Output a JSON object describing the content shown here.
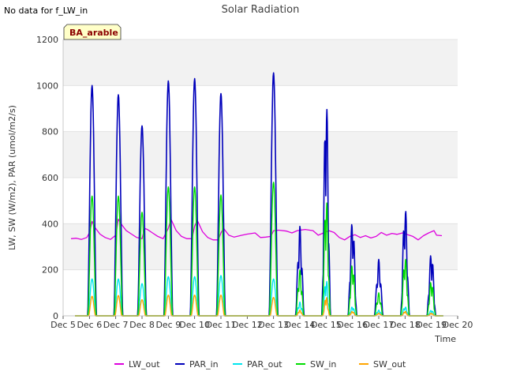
{
  "note": "No data for f_LW_in",
  "chart_data": {
    "type": "line",
    "title": "Solar Radiation",
    "xlabel": "Time",
    "ylabel": "LW, SW (W/m2), PAR (umol/m2/s)",
    "badge": "BA_arable",
    "xlim": [
      5,
      20
    ],
    "ylim": [
      0,
      1200
    ],
    "xticks": [
      5,
      6,
      7,
      8,
      9,
      10,
      11,
      12,
      13,
      14,
      15,
      16,
      17,
      18,
      19,
      20
    ],
    "xtick_labels": [
      "Dec 5",
      "Dec 6",
      "Dec 7",
      "Dec 8",
      "Dec 9",
      "Dec 10",
      "Dec 11",
      "Dec 12",
      "Dec 13",
      "Dec 14",
      "Dec 15",
      "Dec 16",
      "Dec 17",
      "Dec 18",
      "Dec 19",
      "Dec 20"
    ],
    "yticks": [
      0,
      200,
      400,
      600,
      800,
      1000,
      1200
    ],
    "grid": true,
    "legend_position": "bottom",
    "day_peaks": [
      {
        "day": 6.1,
        "PAR_in": 1000,
        "SW_in": 520,
        "PAR_out": 160,
        "SW_out": 85
      },
      {
        "day": 7.1,
        "PAR_in": 960,
        "SW_in": 520,
        "PAR_out": 160,
        "SW_out": 88
      },
      {
        "day": 8.0,
        "PAR_in": 825,
        "SW_in": 450,
        "PAR_out": 140,
        "SW_out": 70
      },
      {
        "day": 9.0,
        "PAR_in": 1020,
        "SW_in": 560,
        "PAR_out": 170,
        "SW_out": 90
      },
      {
        "day": 10.0,
        "PAR_in": 1030,
        "SW_in": 560,
        "PAR_out": 170,
        "SW_out": 90
      },
      {
        "day": 11.0,
        "PAR_in": 965,
        "SW_in": 525,
        "PAR_out": 175,
        "SW_out": 90
      },
      {
        "day": 13.0,
        "PAR_in": 1055,
        "SW_in": 580,
        "PAR_out": 160,
        "SW_out": 80
      },
      {
        "day": 14.0,
        "PAR_in": 390,
        "SW_in": 200,
        "PAR_out": 60,
        "SW_out": 25
      },
      {
        "day": 15.0,
        "PAR_in": 960,
        "SW_in": 525,
        "PAR_out": 160,
        "SW_out": 85
      },
      {
        "day": 16.0,
        "PAR_in": 420,
        "SW_in": 230,
        "PAR_out": 40,
        "SW_out": 20
      },
      {
        "day": 17.0,
        "PAR_in": 245,
        "SW_in": 100,
        "PAR_out": 25,
        "SW_out": 12
      },
      {
        "day": 18.0,
        "PAR_in": 480,
        "SW_in": 260,
        "PAR_out": 40,
        "SW_out": 20
      },
      {
        "day": 19.0,
        "PAR_in": 280,
        "SW_in": 155,
        "PAR_out": 25,
        "SW_out": 12
      }
    ],
    "series": [
      {
        "name": "LW_out",
        "color": "#dd00dd"
      },
      {
        "name": "PAR_in",
        "color": "#0000bb"
      },
      {
        "name": "PAR_out",
        "color": "#00e5ee"
      },
      {
        "name": "SW_in",
        "color": "#00dd00"
      },
      {
        "name": "SW_out",
        "color": "#ffa500"
      }
    ],
    "LW_out_points": [
      [
        5.3,
        335
      ],
      [
        5.5,
        337
      ],
      [
        5.7,
        332
      ],
      [
        5.9,
        340
      ],
      [
        6.0,
        360
      ],
      [
        6.1,
        410
      ],
      [
        6.2,
        385
      ],
      [
        6.4,
        355
      ],
      [
        6.6,
        340
      ],
      [
        6.8,
        332
      ],
      [
        7.0,
        350
      ],
      [
        7.1,
        420
      ],
      [
        7.2,
        400
      ],
      [
        7.4,
        370
      ],
      [
        7.6,
        355
      ],
      [
        7.8,
        340
      ],
      [
        8.0,
        335
      ],
      [
        8.1,
        380
      ],
      [
        8.2,
        375
      ],
      [
        8.4,
        360
      ],
      [
        8.6,
        345
      ],
      [
        8.8,
        335
      ],
      [
        9.0,
        380
      ],
      [
        9.1,
        420
      ],
      [
        9.3,
        370
      ],
      [
        9.5,
        345
      ],
      [
        9.7,
        335
      ],
      [
        9.9,
        335
      ],
      [
        10.0,
        390
      ],
      [
        10.1,
        415
      ],
      [
        10.3,
        365
      ],
      [
        10.5,
        340
      ],
      [
        10.7,
        330
      ],
      [
        10.9,
        330
      ],
      [
        11.0,
        360
      ],
      [
        11.1,
        380
      ],
      [
        11.3,
        350
      ],
      [
        11.5,
        342
      ],
      [
        11.8,
        350
      ],
      [
        12.0,
        355
      ],
      [
        12.3,
        360
      ],
      [
        12.5,
        340
      ],
      [
        12.7,
        342
      ],
      [
        12.9,
        345
      ],
      [
        13.0,
        370
      ],
      [
        13.2,
        372
      ],
      [
        13.5,
        368
      ],
      [
        13.7,
        360
      ],
      [
        13.9,
        370
      ],
      [
        14.2,
        375
      ],
      [
        14.5,
        370
      ],
      [
        14.7,
        350
      ],
      [
        14.9,
        360
      ],
      [
        15.1,
        370
      ],
      [
        15.3,
        362
      ],
      [
        15.5,
        340
      ],
      [
        15.7,
        330
      ],
      [
        15.9,
        345
      ],
      [
        16.1,
        352
      ],
      [
        16.3,
        340
      ],
      [
        16.5,
        348
      ],
      [
        16.7,
        338
      ],
      [
        16.9,
        345
      ],
      [
        17.1,
        362
      ],
      [
        17.3,
        350
      ],
      [
        17.5,
        358
      ],
      [
        17.7,
        354
      ],
      [
        17.9,
        360
      ],
      [
        18.1,
        352
      ],
      [
        18.3,
        345
      ],
      [
        18.5,
        330
      ],
      [
        18.7,
        348
      ],
      [
        18.9,
        360
      ],
      [
        19.1,
        370
      ],
      [
        19.2,
        350
      ],
      [
        19.4,
        348
      ]
    ]
  }
}
